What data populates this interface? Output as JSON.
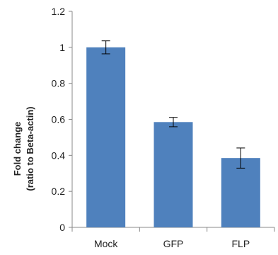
{
  "chart_data": {
    "type": "bar",
    "categories": [
      "Mock",
      "GFP",
      "FLP"
    ],
    "values": [
      1.0,
      0.585,
      0.385
    ],
    "errors": [
      0.036,
      0.026,
      0.056
    ],
    "ylabel_lines": [
      "Fold change",
      "(ratio to Beta-actin)"
    ],
    "xlabel": "",
    "title": "",
    "ylim": [
      0,
      1.2
    ],
    "yticks": [
      0,
      0.2,
      0.4,
      0.6,
      0.8,
      1,
      1.2
    ],
    "ytick_labels": [
      "0",
      "0.2",
      "0.4",
      "0.6",
      "0.8",
      "1",
      "1.2"
    ],
    "bar_color": "#4f81bd",
    "error_bar_color": "#000000",
    "axis_color": "#888888",
    "grid": false,
    "legend": "none"
  }
}
